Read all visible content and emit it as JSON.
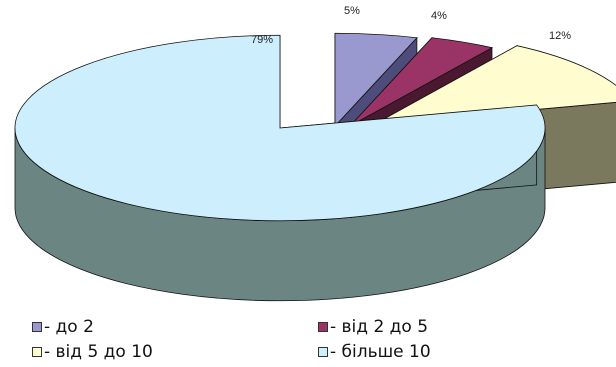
{
  "chart_data": {
    "type": "pie",
    "title": "",
    "categories": [
      "- до 2",
      "- від 2 до 5",
      "- від 5 до 10",
      "- більше 10"
    ],
    "values": [
      5,
      4,
      12,
      79
    ],
    "data_labels": [
      "5%",
      "4%",
      "12%",
      "79%"
    ],
    "colors": [
      "#9a99cf",
      "#9b3466",
      "#fffccf",
      "#cdeefc"
    ],
    "side_colors": [
      "#4d4c7a",
      "#4a1830",
      "#7a795d",
      "#6b8682"
    ],
    "three_d": true,
    "exploded": true,
    "legend_position": "bottom"
  }
}
